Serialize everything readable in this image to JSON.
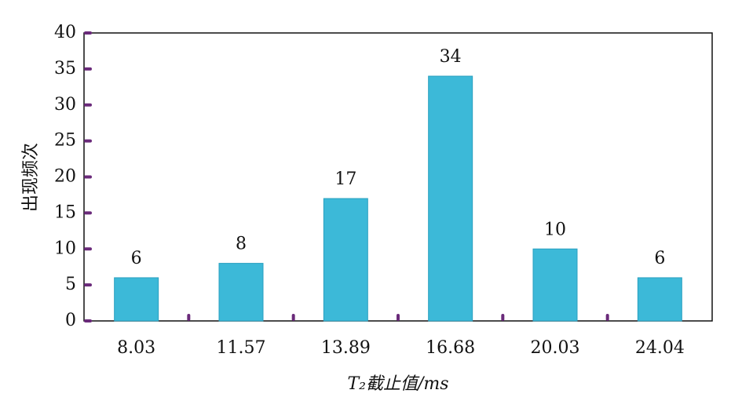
{
  "chart_data": {
    "type": "bar",
    "y_label": "出现频次",
    "x_label": "T₂截止值/ms",
    "categories": [
      "8.03",
      "11.57",
      "13.89",
      "16.68",
      "20.03",
      "24.04"
    ],
    "values": [
      6,
      8,
      17,
      34,
      10,
      6
    ],
    "color": "#3cb9d8",
    "ylim": [
      0,
      40
    ],
    "yticks": [
      0,
      5,
      10,
      15,
      20,
      25,
      30,
      35,
      40
    ],
    "data_labels": true
  }
}
